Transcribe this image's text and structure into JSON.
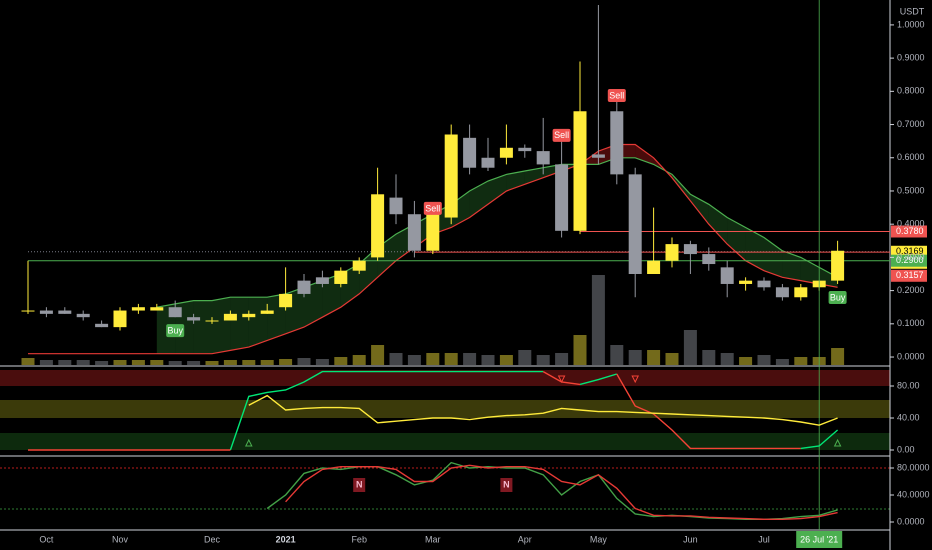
{
  "chart_data": [
    {
      "type": "candlestick",
      "quote": "USDT",
      "categories": [
        null,
        "Oct",
        null,
        null,
        null,
        "Nov",
        null,
        null,
        null,
        null,
        "Dec",
        null,
        null,
        null,
        "2021",
        null,
        null,
        null,
        "Feb",
        null,
        null,
        null,
        "Mar",
        null,
        null,
        null,
        null,
        "Apr",
        null,
        null,
        null,
        "May",
        null,
        null,
        null,
        null,
        "Jun",
        null,
        null,
        null,
        "Jul",
        null,
        null,
        null,
        null
      ],
      "open": [
        0.14,
        0.14,
        0.14,
        0.13,
        0.1,
        0.09,
        0.14,
        0.14,
        0.15,
        0.12,
        0.11,
        0.11,
        0.12,
        0.13,
        0.15,
        0.23,
        0.24,
        0.22,
        0.26,
        0.3,
        0.48,
        0.43,
        0.32,
        0.42,
        0.66,
        0.6,
        0.6,
        0.63,
        0.62,
        0.58,
        0.38,
        0.61,
        0.74,
        0.55,
        0.25,
        0.29,
        0.34,
        0.31,
        0.27,
        0.22,
        0.23,
        0.21,
        0.18,
        0.21,
        0.23
      ],
      "high": [
        0.29,
        0.15,
        0.15,
        0.14,
        0.11,
        0.15,
        0.16,
        0.16,
        0.17,
        0.13,
        0.12,
        0.14,
        0.14,
        0.16,
        0.27,
        0.25,
        0.26,
        0.27,
        0.3,
        0.57,
        0.55,
        0.47,
        0.44,
        0.7,
        0.7,
        0.66,
        0.7,
        0.64,
        0.72,
        0.66,
        0.89,
        1.06,
        0.78,
        0.57,
        0.45,
        0.36,
        0.35,
        0.33,
        0.29,
        0.24,
        0.24,
        0.22,
        0.22,
        0.23,
        0.35
      ],
      "low": [
        0.13,
        0.12,
        0.13,
        0.11,
        0.09,
        0.08,
        0.13,
        0.14,
        0.12,
        0.1,
        0.1,
        0.11,
        0.11,
        0.13,
        0.14,
        0.18,
        0.21,
        0.21,
        0.25,
        0.29,
        0.4,
        0.3,
        0.31,
        0.4,
        0.55,
        0.56,
        0.58,
        0.6,
        0.55,
        0.36,
        0.37,
        0.58,
        0.52,
        0.18,
        0.25,
        0.27,
        0.25,
        0.26,
        0.18,
        0.2,
        0.2,
        0.17,
        0.17,
        0.2,
        0.22
      ],
      "close": [
        0.14,
        0.13,
        0.13,
        0.12,
        0.09,
        0.14,
        0.15,
        0.15,
        0.12,
        0.11,
        0.11,
        0.13,
        0.13,
        0.14,
        0.19,
        0.19,
        0.22,
        0.26,
        0.29,
        0.49,
        0.43,
        0.32,
        0.43,
        0.67,
        0.57,
        0.57,
        0.63,
        0.62,
        0.58,
        0.38,
        0.74,
        0.6,
        0.55,
        0.25,
        0.29,
        0.34,
        0.31,
        0.28,
        0.22,
        0.23,
        0.21,
        0.18,
        0.21,
        0.23,
        0.32
      ],
      "volume": [
        7,
        5,
        5,
        5,
        4,
        5,
        5,
        5,
        4,
        4,
        4,
        5,
        5,
        5,
        6,
        7,
        6,
        8,
        10,
        20,
        12,
        10,
        12,
        12,
        12,
        10,
        10,
        15,
        10,
        12,
        30,
        90,
        20,
        15,
        15,
        12,
        35,
        15,
        12,
        8,
        10,
        6,
        8,
        8,
        17
      ],
      "up_color": "#ffeb3b",
      "down_color": "#9598a1",
      "ma": [
        {
          "color": "#4caf50",
          "values": [
            null,
            null,
            null,
            null,
            null,
            null,
            null,
            0.15,
            0.16,
            0.17,
            0.17,
            0.18,
            0.18,
            0.18,
            0.19,
            0.21,
            0.23,
            0.25,
            0.28,
            0.33,
            0.37,
            0.4,
            0.43,
            0.46,
            0.5,
            0.53,
            0.55,
            0.56,
            0.57,
            0.58,
            0.58,
            0.58,
            0.6,
            0.6,
            0.58,
            0.55,
            0.49,
            0.46,
            0.42,
            0.39,
            0.36,
            0.32,
            0.3,
            0.27,
            0.24
          ]
        },
        {
          "color": "#e53935",
          "values": [
            0.01,
            0.01,
            0.01,
            0.01,
            0.01,
            0.01,
            0.01,
            0.01,
            0.01,
            0.01,
            0.01,
            0.02,
            0.03,
            0.05,
            0.07,
            0.09,
            0.12,
            0.15,
            0.19,
            0.24,
            0.29,
            0.33,
            0.37,
            0.39,
            0.42,
            0.46,
            0.5,
            0.52,
            0.54,
            0.56,
            0.58,
            0.62,
            0.64,
            0.64,
            0.6,
            0.54,
            0.47,
            0.4,
            0.34,
            0.29,
            0.26,
            0.24,
            0.23,
            0.22,
            0.21
          ]
        }
      ],
      "ylim": [
        -0.024,
        1.075
      ],
      "yticks": [
        {
          "value": 0,
          "label": "0.0000"
        },
        {
          "value": 0.1,
          "label": "0.1000"
        },
        {
          "value": 0.2,
          "label": "0.2000"
        },
        {
          "value": 0.3,
          "label": "0.3000"
        },
        {
          "value": 0.4,
          "label": "0.4000"
        },
        {
          "value": 0.5,
          "label": "0.5000"
        },
        {
          "value": 0.6,
          "label": "0.6000"
        },
        {
          "value": 0.7,
          "label": "0.7000"
        },
        {
          "value": 0.8,
          "label": "0.8000"
        },
        {
          "value": 0.9,
          "label": "0.9000"
        },
        {
          "value": 1,
          "label": "1.0000"
        }
      ],
      "levels": [
        {
          "value": 0.378,
          "label": "0.3780",
          "color": "#ef5350",
          "from": 30
        },
        {
          "value": 0.3169,
          "label": "0.3169",
          "color": "#ffeb3b",
          "from": 0
        },
        {
          "value": 0.3157,
          "label": "0.3157",
          "color": "#ef5350",
          "from": 21
        },
        {
          "value": 0.29,
          "label": "0.2900",
          "color": "#4caf50",
          "from": 0
        }
      ],
      "countdown": "2d 12h",
      "signals": [
        {
          "index": 8,
          "label": "Buy"
        },
        {
          "index": 22,
          "label": "Sell"
        },
        {
          "index": 29,
          "label": "Sell"
        },
        {
          "index": 32,
          "label": "Sell"
        },
        {
          "index": 44,
          "label": "Buy"
        }
      ],
      "crosshair": {
        "index": 43,
        "label": "26 Jul '21"
      }
    },
    {
      "type": "line",
      "series": [
        {
          "color": "#00e676",
          "values": [
            null,
            null,
            null,
            null,
            null,
            null,
            null,
            null,
            null,
            null,
            null,
            0,
            67,
            72,
            75,
            85,
            98,
            98,
            98,
            98,
            98,
            98,
            98,
            98,
            98,
            98,
            98,
            98,
            98,
            null,
            82,
            88,
            95,
            null,
            null,
            null,
            null,
            null,
            null,
            null,
            null,
            null,
            2,
            5,
            25
          ]
        },
        {
          "color": "#f44336",
          "values": [
            0,
            0,
            0,
            0,
            0,
            0,
            0,
            0,
            0,
            0,
            0,
            0,
            null,
            null,
            null,
            null,
            null,
            null,
            null,
            null,
            null,
            null,
            null,
            null,
            null,
            null,
            null,
            null,
            98,
            85,
            82,
            null,
            95,
            55,
            45,
            25,
            2,
            2,
            2,
            2,
            2,
            2,
            2,
            null,
            null
          ]
        },
        {
          "color": "#ffeb3b",
          "values": [
            null,
            null,
            null,
            null,
            null,
            null,
            null,
            null,
            null,
            null,
            null,
            null,
            56,
            68,
            50,
            52,
            53,
            53,
            52,
            34,
            36,
            38,
            40,
            40,
            38,
            41,
            43,
            44,
            46,
            52,
            50,
            48,
            48,
            47,
            46,
            45,
            44,
            43,
            42,
            41,
            40,
            38,
            35,
            31,
            40
          ]
        }
      ],
      "ylim": [
        -6.25,
        103.75
      ],
      "yticks": [
        {
          "value": 0,
          "label": "0.00"
        },
        {
          "value": 40,
          "label": "40.00"
        },
        {
          "value": 80,
          "label": "80.00"
        }
      ],
      "up_arrows": [
        12,
        44
      ],
      "down_arrows": [
        29,
        33
      ]
    },
    {
      "type": "line",
      "series": [
        {
          "color": "#43a047",
          "values": [
            null,
            null,
            null,
            null,
            null,
            null,
            null,
            null,
            null,
            null,
            null,
            null,
            null,
            20,
            40,
            72,
            80,
            78,
            82,
            82,
            70,
            55,
            62,
            88,
            80,
            82,
            80,
            80,
            70,
            40,
            60,
            70,
            35,
            12,
            8,
            10,
            8,
            6,
            5,
            4,
            4,
            5,
            8,
            10,
            18
          ]
        },
        {
          "color": "#e53935",
          "values": [
            null,
            null,
            null,
            null,
            null,
            null,
            null,
            null,
            null,
            null,
            null,
            null,
            null,
            null,
            30,
            60,
            78,
            82,
            82,
            82,
            78,
            60,
            60,
            80,
            84,
            80,
            82,
            82,
            78,
            60,
            55,
            70,
            50,
            20,
            10,
            9,
            9,
            7,
            6,
            5,
            4,
            4,
            5,
            8,
            14
          ]
        }
      ],
      "ylim": [
        -11.85,
        96.3
      ],
      "yticks": [
        {
          "value": 0,
          "label": "0.0000"
        },
        {
          "value": 40,
          "label": "40.0000"
        },
        {
          "value": 80,
          "label": "80.0000"
        }
      ],
      "markers": [
        {
          "index": 18,
          "label": "N"
        },
        {
          "index": 26,
          "label": "N"
        }
      ]
    }
  ]
}
